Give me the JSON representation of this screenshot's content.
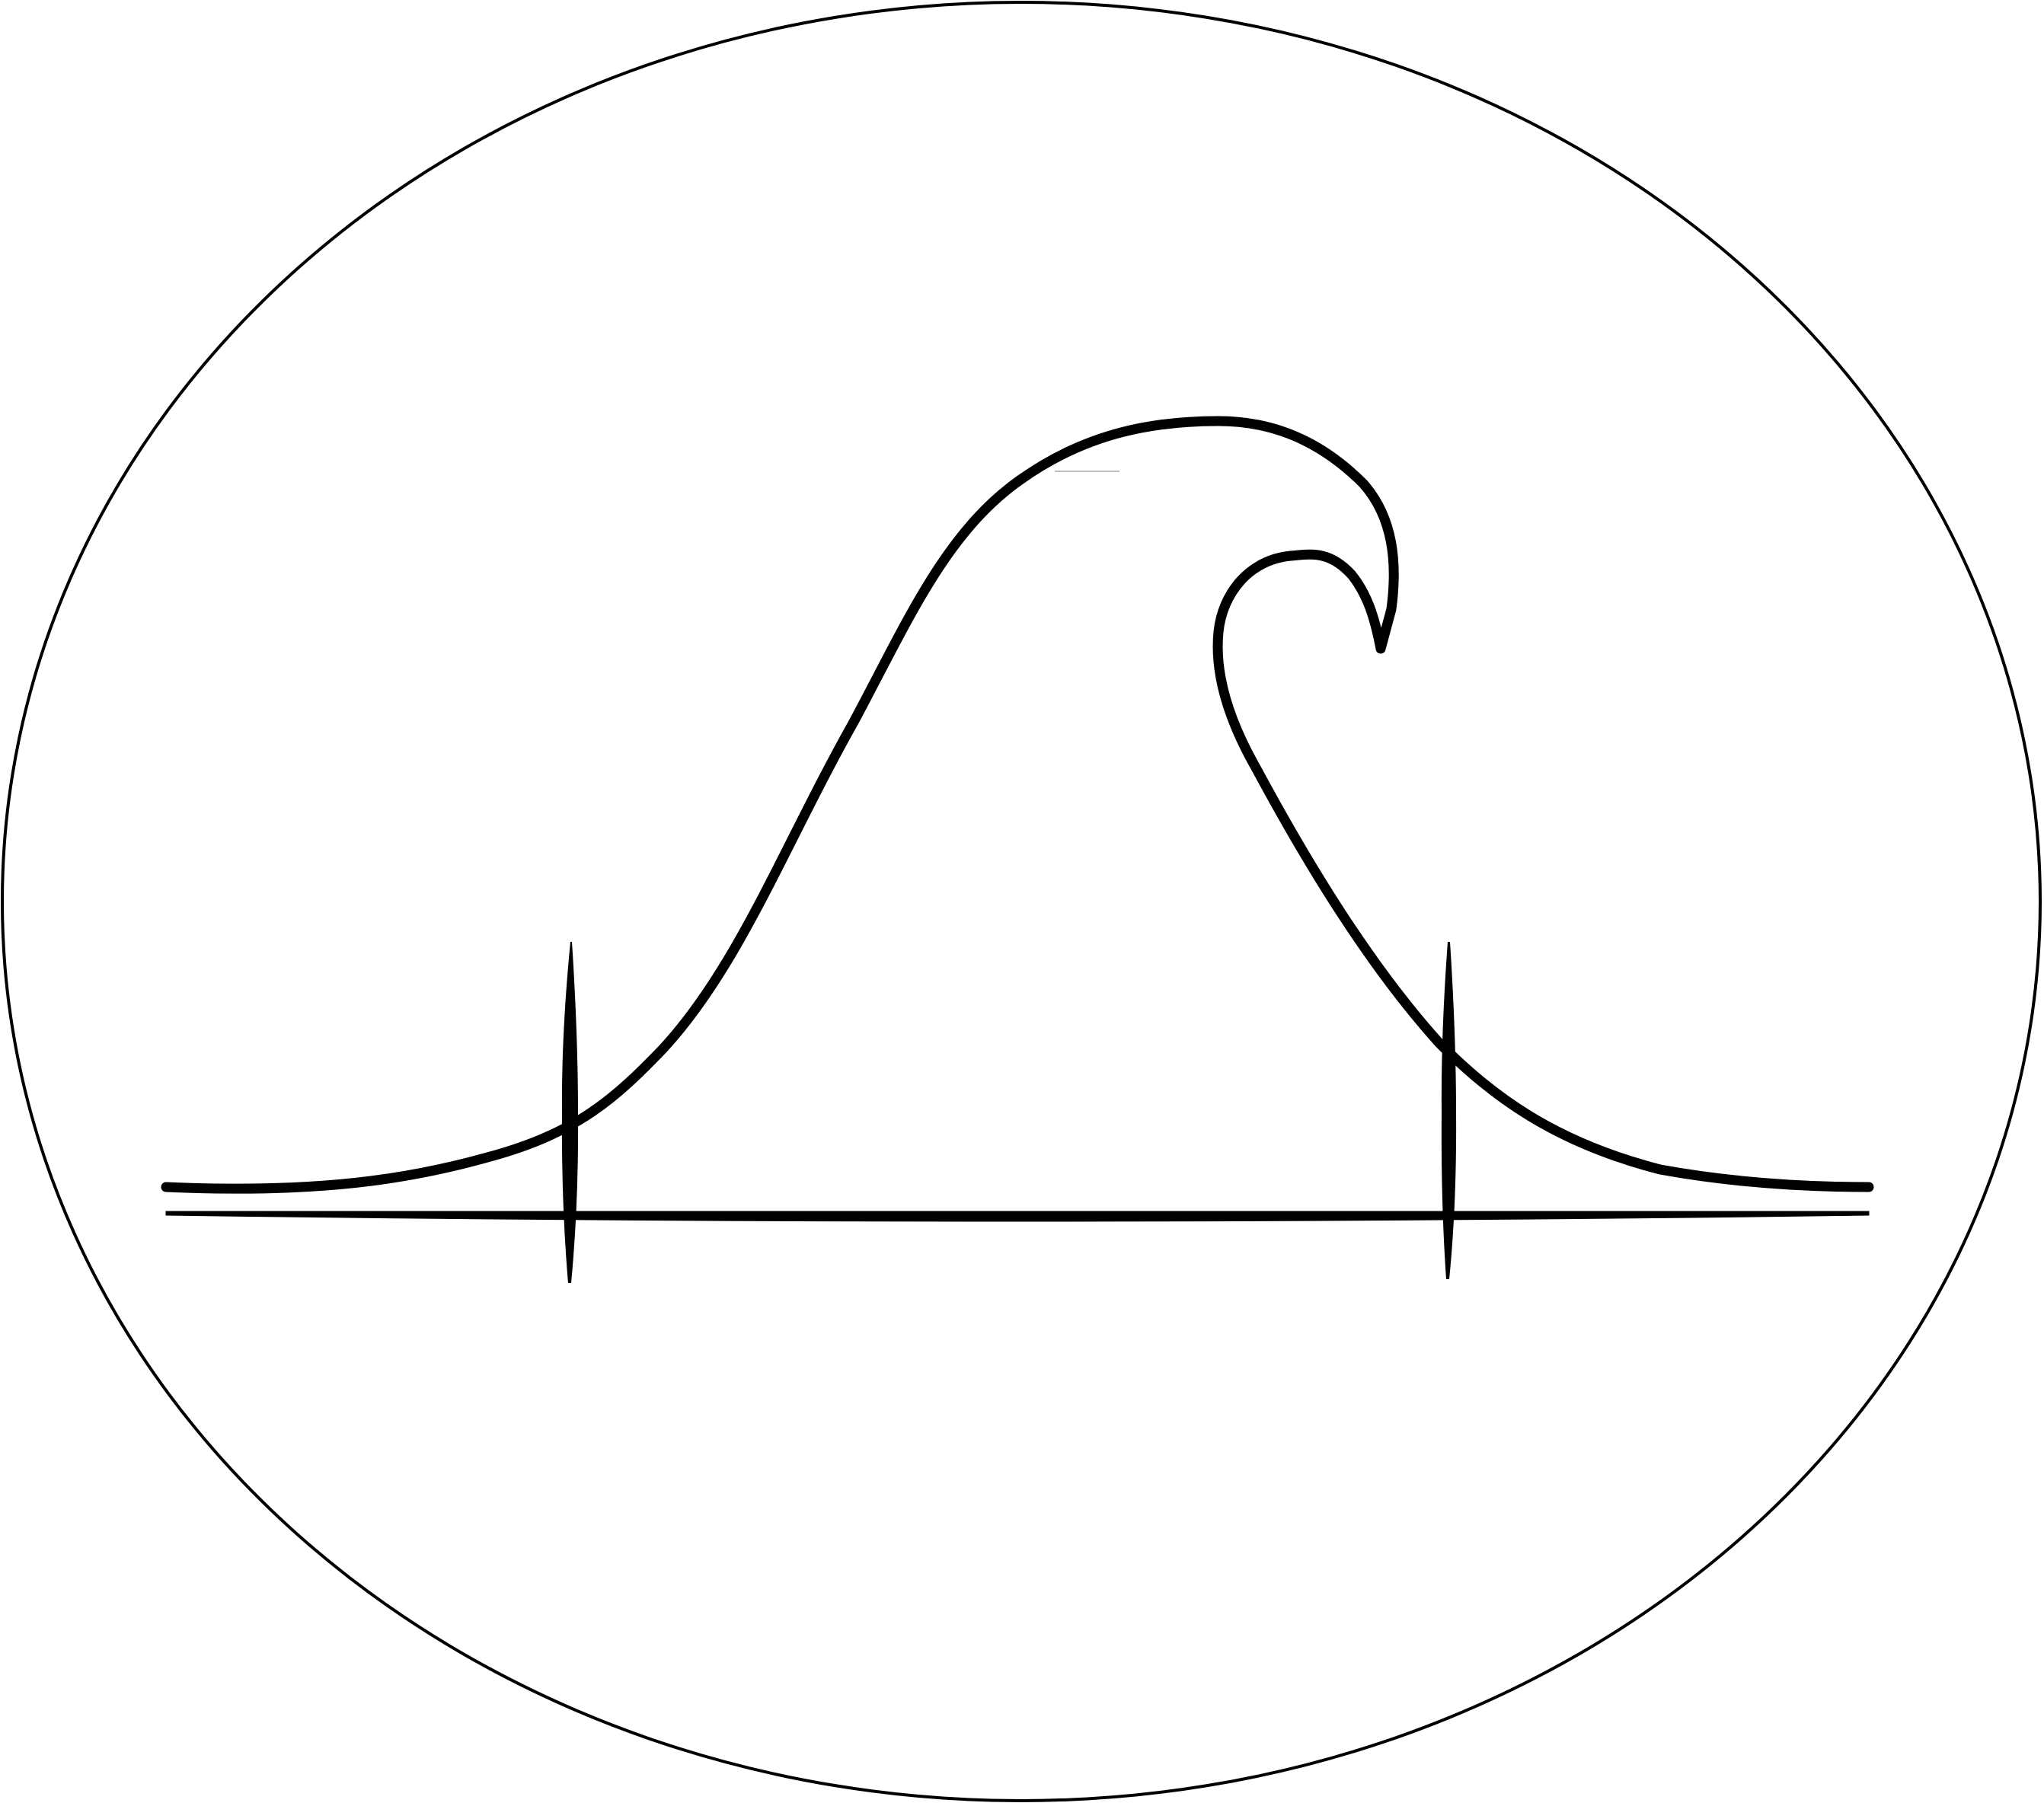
{
  "logo": {
    "shapes": [
      "oval-border",
      "wave-curve",
      "baseline",
      "left-tick",
      "right-tick"
    ],
    "colors": {
      "background": "#ffffff",
      "stroke": "#000000",
      "faint_stroke": "#bdbdbd"
    }
  }
}
